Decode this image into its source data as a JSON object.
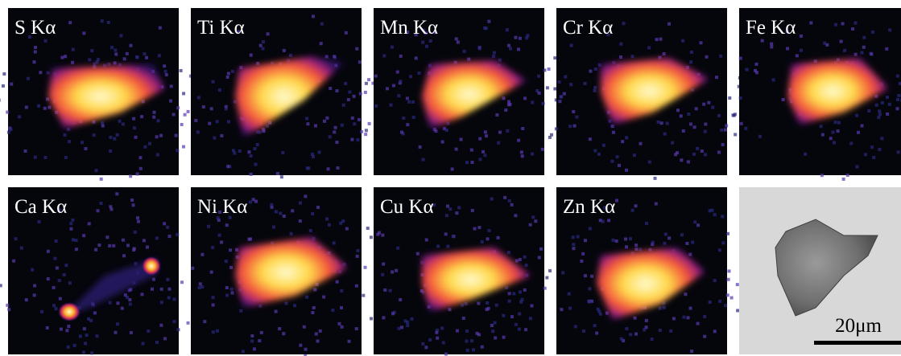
{
  "panels": [
    {
      "label": "S Kα"
    },
    {
      "label": "Ti Kα"
    },
    {
      "label": "Mn Kα"
    },
    {
      "label": "Cr Kα"
    },
    {
      "label": "Fe Kα"
    },
    {
      "label": "Ca Kα"
    },
    {
      "label": "Ni Kα"
    },
    {
      "label": "Cu Kα"
    },
    {
      "label": "Zn Kα"
    }
  ],
  "sem_panel": {
    "scale_bar": "20μm"
  }
}
